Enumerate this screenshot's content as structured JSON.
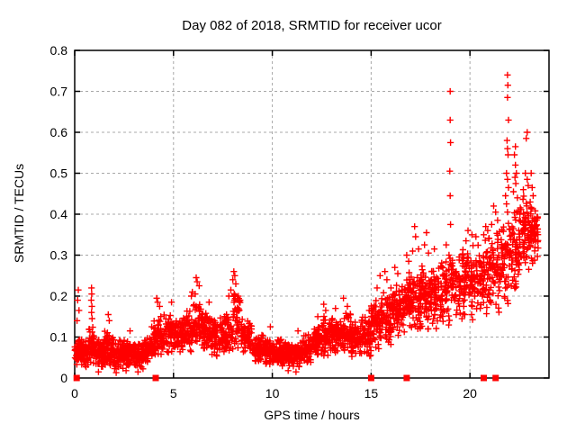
{
  "page": {
    "background": "#ffffff"
  },
  "chart_data": {
    "type": "scatter",
    "title": "Day 082 of 2018, SRMTID for receiver ucor",
    "xlabel": "GPS time / hours",
    "ylabel": "SRMTID / TECUs",
    "xlim": [
      0,
      24
    ],
    "ylim": [
      0,
      0.8
    ],
    "xticks": [
      0,
      5,
      10,
      15,
      20
    ],
    "yticks": [
      0,
      0.1,
      0.2,
      0.3,
      0.4,
      0.5,
      0.6,
      0.7,
      0.8
    ],
    "grid": true,
    "legend": "none",
    "axis_color": "#000000",
    "grid_color": "#a8a8a8",
    "marker_color": "#ff0000",
    "series": [
      {
        "name": "srmtid-values",
        "marker": "plus",
        "color": "#ff0000",
        "prng_seed": 20180082,
        "density_bins": [
          [
            0.0,
            0.3,
            0.03,
            0.105,
            45
          ],
          [
            0.3,
            0.7,
            0.025,
            0.095,
            60
          ],
          [
            0.7,
            1.0,
            0.03,
            0.13,
            50
          ],
          [
            1.0,
            1.5,
            0.02,
            0.1,
            72
          ],
          [
            1.5,
            2.0,
            0.025,
            0.115,
            72
          ],
          [
            2.0,
            2.5,
            0.02,
            0.095,
            72
          ],
          [
            2.5,
            3.0,
            0.025,
            0.1,
            72
          ],
          [
            3.0,
            3.5,
            0.02,
            0.095,
            70
          ],
          [
            3.5,
            4.0,
            0.03,
            0.105,
            70
          ],
          [
            4.0,
            4.5,
            0.05,
            0.16,
            60
          ],
          [
            4.5,
            5.0,
            0.055,
            0.165,
            60
          ],
          [
            5.0,
            5.5,
            0.055,
            0.15,
            60
          ],
          [
            5.5,
            6.0,
            0.06,
            0.17,
            60
          ],
          [
            6.0,
            6.5,
            0.065,
            0.19,
            60
          ],
          [
            6.5,
            7.0,
            0.055,
            0.165,
            60
          ],
          [
            7.0,
            7.5,
            0.05,
            0.15,
            60
          ],
          [
            7.5,
            8.0,
            0.055,
            0.175,
            60
          ],
          [
            8.0,
            8.4,
            0.07,
            0.22,
            46
          ],
          [
            8.4,
            9.0,
            0.05,
            0.15,
            66
          ],
          [
            9.0,
            9.5,
            0.035,
            0.11,
            66
          ],
          [
            9.5,
            10.0,
            0.03,
            0.105,
            66
          ],
          [
            10.0,
            10.5,
            0.03,
            0.1,
            70
          ],
          [
            10.5,
            11.0,
            0.025,
            0.09,
            70
          ],
          [
            11.0,
            11.5,
            0.025,
            0.09,
            70
          ],
          [
            11.5,
            12.0,
            0.03,
            0.11,
            64
          ],
          [
            12.0,
            12.5,
            0.045,
            0.13,
            64
          ],
          [
            12.5,
            13.0,
            0.05,
            0.155,
            64
          ],
          [
            13.0,
            13.5,
            0.055,
            0.155,
            64
          ],
          [
            13.5,
            14.0,
            0.055,
            0.165,
            64
          ],
          [
            14.0,
            14.5,
            0.05,
            0.14,
            64
          ],
          [
            14.5,
            15.0,
            0.05,
            0.155,
            64
          ],
          [
            15.0,
            15.5,
            0.07,
            0.2,
            58
          ],
          [
            15.5,
            16.0,
            0.08,
            0.225,
            58
          ],
          [
            16.0,
            16.5,
            0.09,
            0.245,
            60
          ],
          [
            16.5,
            17.0,
            0.1,
            0.265,
            60
          ],
          [
            17.0,
            17.5,
            0.1,
            0.285,
            60
          ],
          [
            17.5,
            18.0,
            0.11,
            0.285,
            60
          ],
          [
            18.0,
            18.5,
            0.12,
            0.295,
            58
          ],
          [
            18.5,
            19.0,
            0.12,
            0.305,
            58
          ],
          [
            19.0,
            19.5,
            0.13,
            0.315,
            55
          ],
          [
            19.5,
            20.0,
            0.13,
            0.325,
            55
          ],
          [
            20.0,
            20.5,
            0.14,
            0.335,
            55
          ],
          [
            20.5,
            21.0,
            0.15,
            0.345,
            55
          ],
          [
            21.0,
            21.5,
            0.15,
            0.365,
            57
          ],
          [
            21.5,
            22.0,
            0.17,
            0.395,
            57
          ],
          [
            22.0,
            22.5,
            0.2,
            0.435,
            60
          ],
          [
            22.5,
            23.0,
            0.24,
            0.465,
            60
          ],
          [
            23.0,
            23.45,
            0.27,
            0.43,
            64
          ]
        ],
        "outlier_points": [
          [
            0.15,
            0.19
          ],
          [
            0.18,
            0.215
          ],
          [
            0.22,
            0.165
          ],
          [
            0.12,
            0.14
          ],
          [
            0.85,
            0.22
          ],
          [
            0.86,
            0.205
          ],
          [
            0.84,
            0.19
          ],
          [
            0.87,
            0.175
          ],
          [
            0.85,
            0.16
          ],
          [
            0.88,
            0.145
          ],
          [
            1.2,
            0.015
          ],
          [
            1.7,
            0.155
          ],
          [
            1.75,
            0.14
          ],
          [
            2.1,
            0.013
          ],
          [
            2.6,
            0.018
          ],
          [
            2.8,
            0.115
          ],
          [
            3.2,
            0.015
          ],
          [
            3.9,
            0.125
          ],
          [
            4.15,
            0.195
          ],
          [
            4.2,
            0.185
          ],
          [
            4.3,
            0.175
          ],
          [
            4.9,
            0.185
          ],
          [
            5.9,
            0.2
          ],
          [
            5.95,
            0.21
          ],
          [
            6.15,
            0.245
          ],
          [
            6.2,
            0.235
          ],
          [
            6.3,
            0.225
          ],
          [
            6.1,
            0.205
          ],
          [
            6.8,
            0.185
          ],
          [
            7.8,
            0.2
          ],
          [
            7.9,
            0.215
          ],
          [
            8.05,
            0.26
          ],
          [
            8.1,
            0.25
          ],
          [
            8.0,
            0.24
          ],
          [
            8.15,
            0.23
          ],
          [
            9.9,
            0.125
          ],
          [
            10.8,
            0.018
          ],
          [
            11.2,
            0.015
          ],
          [
            11.3,
            0.115
          ],
          [
            12.3,
            0.15
          ],
          [
            12.6,
            0.18
          ],
          [
            12.7,
            0.165
          ],
          [
            13.2,
            0.17
          ],
          [
            13.6,
            0.195
          ],
          [
            13.8,
            0.175
          ],
          [
            14.9,
            0.165
          ],
          [
            15.3,
            0.22
          ],
          [
            15.45,
            0.25
          ],
          [
            15.7,
            0.26
          ],
          [
            15.8,
            0.24
          ],
          [
            16.2,
            0.27
          ],
          [
            16.35,
            0.255
          ],
          [
            16.8,
            0.3
          ],
          [
            16.9,
            0.285
          ],
          [
            17.2,
            0.37
          ],
          [
            17.25,
            0.345
          ],
          [
            17.1,
            0.31
          ],
          [
            17.4,
            0.315
          ],
          [
            17.8,
            0.355
          ],
          [
            17.7,
            0.325
          ],
          [
            17.9,
            0.305
          ],
          [
            18.2,
            0.315
          ],
          [
            18.8,
            0.325
          ],
          [
            19.0,
            0.7
          ],
          [
            19.0,
            0.63
          ],
          [
            19.02,
            0.575
          ],
          [
            18.98,
            0.505
          ],
          [
            19.0,
            0.445
          ],
          [
            19.02,
            0.375
          ],
          [
            19.8,
            0.335
          ],
          [
            19.9,
            0.36
          ],
          [
            20.1,
            0.35
          ],
          [
            20.3,
            0.345
          ],
          [
            20.7,
            0.35
          ],
          [
            20.8,
            0.37
          ],
          [
            20.9,
            0.36
          ],
          [
            21.1,
            0.375
          ],
          [
            21.2,
            0.42
          ],
          [
            21.3,
            0.405
          ],
          [
            21.4,
            0.385
          ],
          [
            21.9,
            0.74
          ],
          [
            21.92,
            0.715
          ],
          [
            21.9,
            0.685
          ],
          [
            21.95,
            0.63
          ],
          [
            21.88,
            0.58
          ],
          [
            21.9,
            0.56
          ],
          [
            21.93,
            0.545
          ],
          [
            21.85,
            0.5
          ],
          [
            21.9,
            0.485
          ],
          [
            21.95,
            0.465
          ],
          [
            21.8,
            0.445
          ],
          [
            21.85,
            0.425
          ],
          [
            21.9,
            0.405
          ],
          [
            22.3,
            0.565
          ],
          [
            22.25,
            0.545
          ],
          [
            22.3,
            0.52
          ],
          [
            22.35,
            0.5
          ],
          [
            22.28,
            0.49
          ],
          [
            22.32,
            0.475
          ],
          [
            22.2,
            0.455
          ],
          [
            22.4,
            0.44
          ],
          [
            22.9,
            0.6
          ],
          [
            22.85,
            0.585
          ],
          [
            22.8,
            0.5
          ],
          [
            22.9,
            0.485
          ],
          [
            22.95,
            0.47
          ],
          [
            22.7,
            0.46
          ],
          [
            23.1,
            0.5
          ],
          [
            23.15,
            0.465
          ],
          [
            23.2,
            0.445
          ],
          [
            23.05,
            0.43
          ]
        ]
      },
      {
        "name": "flagged-epochs",
        "marker": "filled-square",
        "color": "#ff0000",
        "points": [
          [
            0.1,
            0
          ],
          [
            4.1,
            0
          ],
          [
            15.0,
            0
          ],
          [
            16.8,
            0
          ],
          [
            20.7,
            0
          ],
          [
            21.3,
            0
          ]
        ]
      }
    ]
  }
}
